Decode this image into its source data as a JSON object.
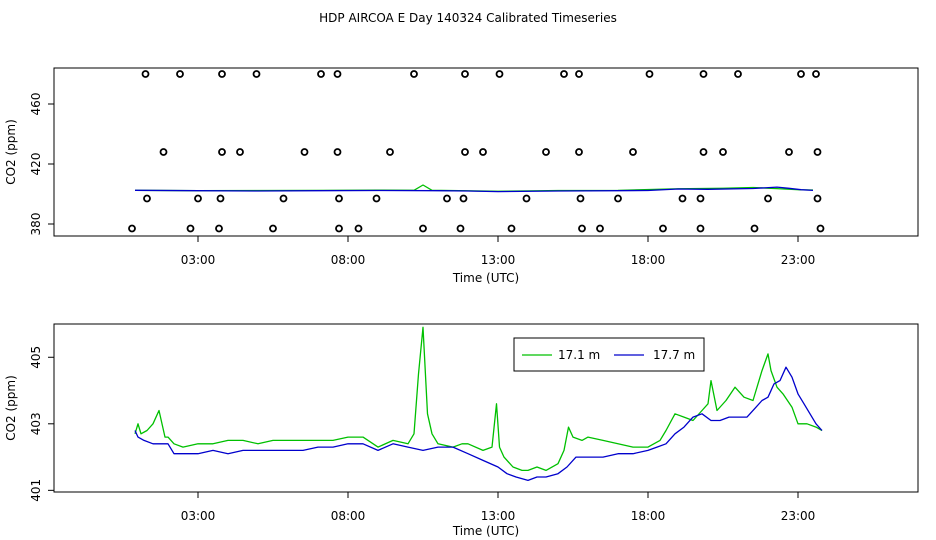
{
  "title": "HDP AIRCOA E  Day 140324  Calibrated Timeseries",
  "colors": {
    "green": "#00c000",
    "blue": "#0000cc"
  },
  "chart_data": [
    {
      "type": "line",
      "title": "",
      "xlabel": "Time (UTC)",
      "ylabel": "CO2 (ppm)",
      "x_unit": "hours UTC",
      "xlim": [
        -1.8,
        27.0
      ],
      "ylim": [
        372,
        484
      ],
      "xticks": [
        3,
        8,
        13,
        18,
        23
      ],
      "xtick_labels": [
        "03:00",
        "08:00",
        "13:00",
        "18:00",
        "23:00"
      ],
      "yticks": [
        380,
        420,
        460
      ],
      "ytick_labels": [
        "380",
        "420",
        "460"
      ],
      "grid": false,
      "legend": "none",
      "series": [
        {
          "color": "#00c000",
          "style": "line",
          "x": [
            0.9,
            3,
            5,
            7,
            9,
            10.2,
            10.5,
            10.8,
            12,
            13,
            15,
            17,
            19,
            20.5,
            21.5,
            22.3,
            23.1,
            23.5
          ],
          "y": [
            402.5,
            402.2,
            402.3,
            402.4,
            402.6,
            402.5,
            406,
            402.5,
            402.1,
            401.8,
            402.3,
            402.4,
            403.5,
            403.8,
            404.3,
            403.6,
            402.8,
            402.7
          ]
        },
        {
          "color": "#0000cc",
          "style": "line",
          "x": [
            0.9,
            3,
            5,
            7,
            9,
            11,
            12,
            13,
            15,
            17,
            18,
            19,
            20,
            21.5,
            22.3,
            22.7,
            23.1,
            23.5
          ],
          "y": [
            402.5,
            402.2,
            402.0,
            402.2,
            402.3,
            402.2,
            402.0,
            401.6,
            402.0,
            402.2,
            402.3,
            403.3,
            403.1,
            403.7,
            404.6,
            403.8,
            402.9,
            402.4
          ]
        },
        {
          "style": "points",
          "x": [
            1.25,
            2.4,
            3.8,
            4.95,
            7.1,
            7.65,
            10.2,
            11.9,
            13.05,
            15.2,
            15.7,
            18.05,
            19.85,
            21.0,
            23.1,
            23.6
          ],
          "y": [
            480,
            480,
            480,
            480,
            480,
            480,
            480,
            480,
            480,
            480,
            480,
            480,
            480,
            480,
            480,
            480
          ]
        },
        {
          "style": "points",
          "x": [
            1.85,
            3.8,
            4.4,
            6.55,
            7.65,
            9.4,
            11.9,
            12.5,
            14.6,
            15.7,
            17.5,
            19.85,
            20.5,
            22.7,
            23.65
          ],
          "y": [
            428,
            428,
            428,
            428,
            428,
            428,
            428,
            428,
            428,
            428,
            428,
            428,
            428,
            428,
            428
          ]
        },
        {
          "style": "points",
          "x": [
            1.3,
            3.0,
            3.75,
            5.85,
            7.7,
            8.95,
            11.3,
            11.85,
            13.95,
            15.75,
            17.0,
            19.15,
            19.75,
            22.0,
            23.65
          ],
          "y": [
            397,
            397,
            397,
            397,
            397,
            397,
            397,
            397,
            397,
            397,
            397,
            397,
            397,
            397,
            397
          ]
        },
        {
          "style": "points",
          "x": [
            0.8,
            2.75,
            3.7,
            5.5,
            7.7,
            8.35,
            10.5,
            11.75,
            13.45,
            15.8,
            16.4,
            18.5,
            19.75,
            21.55,
            23.75
          ],
          "y": [
            377,
            377,
            377,
            377,
            377,
            377,
            377,
            377,
            377,
            377,
            377,
            377,
            377,
            377,
            377
          ]
        }
      ]
    },
    {
      "type": "line",
      "title": "",
      "xlabel": "Time (UTC)",
      "ylabel": "CO2 (ppm)",
      "x_unit": "hours UTC",
      "xlim": [
        -1.8,
        27.0
      ],
      "ylim": [
        400.95,
        406.0
      ],
      "xticks": [
        3,
        8,
        13,
        18,
        23
      ],
      "xtick_labels": [
        "03:00",
        "08:00",
        "13:00",
        "18:00",
        "23:00"
      ],
      "yticks": [
        401,
        403,
        405
      ],
      "ytick_labels": [
        "401",
        "403",
        "405"
      ],
      "grid": false,
      "legend": "top-center",
      "series": [
        {
          "name": "17.1 m",
          "color": "#00c000",
          "x": [
            0.9,
            1.0,
            1.1,
            1.3,
            1.5,
            1.7,
            1.9,
            2.0,
            2.1,
            2.2,
            2.5,
            3,
            3.5,
            4,
            4.5,
            5,
            5.5,
            6,
            6.5,
            7,
            7.5,
            8,
            8.5,
            9,
            9.5,
            10.0,
            10.2,
            10.35,
            10.5,
            10.65,
            10.8,
            11.0,
            11.5,
            11.8,
            12.0,
            12.5,
            12.8,
            12.95,
            13.05,
            13.2,
            13.5,
            13.8,
            14.0,
            14.3,
            14.6,
            15.0,
            15.2,
            15.35,
            15.5,
            15.8,
            16.0,
            16.5,
            17.0,
            17.5,
            18.0,
            18.4,
            18.6,
            18.9,
            19.2,
            19.5,
            19.8,
            20.0,
            20.1,
            20.3,
            20.6,
            20.9,
            21.2,
            21.5,
            21.8,
            22.0,
            22.1,
            22.3,
            22.5,
            22.8,
            23.0,
            23.3,
            23.6,
            23.8
          ],
          "y": [
            402.7,
            403.0,
            402.7,
            402.8,
            403.0,
            403.4,
            402.6,
            402.6,
            402.5,
            402.4,
            402.3,
            402.4,
            402.4,
            402.5,
            402.5,
            402.4,
            402.5,
            402.5,
            402.5,
            402.5,
            402.5,
            402.6,
            402.6,
            402.3,
            402.5,
            402.4,
            402.7,
            404.5,
            405.9,
            403.3,
            402.7,
            402.4,
            402.3,
            402.4,
            402.4,
            402.2,
            402.3,
            403.6,
            402.3,
            402.0,
            401.7,
            401.6,
            401.6,
            401.7,
            401.6,
            401.8,
            402.2,
            402.9,
            402.6,
            402.5,
            402.6,
            402.5,
            402.4,
            402.3,
            402.3,
            402.5,
            402.8,
            403.3,
            403.2,
            403.1,
            403.4,
            403.6,
            404.3,
            403.4,
            403.7,
            404.1,
            403.8,
            403.7,
            404.6,
            405.1,
            404.6,
            404.1,
            403.9,
            403.5,
            403.0,
            403.0,
            402.9,
            402.8
          ]
        },
        {
          "name": "17.7 m",
          "color": "#0000cc",
          "x": [
            0.9,
            1.0,
            1.2,
            1.5,
            2.0,
            2.2,
            2.5,
            3,
            3.5,
            4,
            4.5,
            5,
            5.5,
            6,
            6.5,
            7,
            7.5,
            8,
            8.5,
            9,
            9.5,
            10,
            10.5,
            11,
            11.5,
            12.0,
            12.5,
            13.0,
            13.3,
            13.6,
            14.0,
            14.3,
            14.6,
            15.0,
            15.3,
            15.6,
            16.0,
            16.5,
            17.0,
            17.5,
            18.0,
            18.3,
            18.6,
            18.9,
            19.2,
            19.5,
            19.8,
            20.1,
            20.4,
            20.7,
            21.0,
            21.3,
            21.6,
            21.8,
            22.0,
            22.2,
            22.4,
            22.6,
            22.8,
            23.0,
            23.2,
            23.4,
            23.6,
            23.8
          ],
          "y": [
            402.8,
            402.6,
            402.5,
            402.4,
            402.4,
            402.1,
            402.1,
            402.1,
            402.2,
            402.1,
            402.2,
            402.2,
            402.2,
            402.2,
            402.2,
            402.3,
            402.3,
            402.4,
            402.4,
            402.2,
            402.4,
            402.3,
            402.2,
            402.3,
            402.3,
            402.1,
            401.9,
            401.7,
            401.5,
            401.4,
            401.3,
            401.4,
            401.4,
            401.5,
            401.7,
            402.0,
            402.0,
            402.0,
            402.1,
            402.1,
            402.2,
            402.3,
            402.4,
            402.7,
            402.9,
            403.2,
            403.3,
            403.1,
            403.1,
            403.2,
            403.2,
            403.2,
            403.5,
            403.7,
            403.8,
            404.2,
            404.3,
            404.7,
            404.4,
            403.9,
            403.6,
            403.3,
            403.0,
            402.8
          ]
        }
      ]
    }
  ]
}
